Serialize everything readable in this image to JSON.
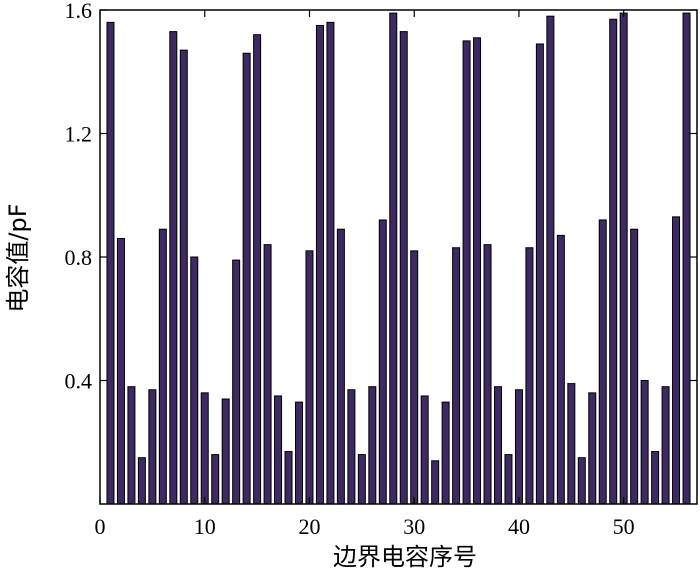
{
  "chart_data": {
    "type": "bar",
    "title": "",
    "xlabel": "边界电容序号",
    "ylabel": "电容值/pF",
    "xlim": [
      0,
      57
    ],
    "ylim": [
      0,
      1.6
    ],
    "xticks": [
      0,
      10,
      20,
      30,
      40,
      50
    ],
    "yticks": [
      0.4,
      0.8,
      1.2,
      1.6
    ],
    "xtick_labels": [
      "0",
      "10",
      "20",
      "30",
      "40",
      "50"
    ],
    "ytick_labels": [
      "0.4",
      "0.8",
      "1.2",
      "1.6"
    ],
    "grid": false,
    "legend": "none",
    "bar_color": "#3d2a63",
    "x": [
      1,
      2,
      3,
      4,
      5,
      6,
      7,
      8,
      9,
      10,
      11,
      12,
      13,
      14,
      15,
      16,
      17,
      18,
      19,
      20,
      21,
      22,
      23,
      24,
      25,
      26,
      27,
      28,
      29,
      30,
      31,
      32,
      33,
      34,
      35,
      36,
      37,
      38,
      39,
      40,
      41,
      42,
      43,
      44,
      45,
      46,
      47,
      48,
      49,
      50,
      51,
      52,
      53,
      54,
      55,
      56
    ],
    "values": [
      1.56,
      0.86,
      0.38,
      0.15,
      0.37,
      0.89,
      1.53,
      1.47,
      0.8,
      0.36,
      0.16,
      0.34,
      0.79,
      1.46,
      1.52,
      0.84,
      0.35,
      0.17,
      0.33,
      0.82,
      1.55,
      1.56,
      0.89,
      0.37,
      0.16,
      0.38,
      0.92,
      1.59,
      1.53,
      0.82,
      0.35,
      0.14,
      0.33,
      0.83,
      1.5,
      1.51,
      0.84,
      0.38,
      0.16,
      0.37,
      0.83,
      1.49,
      1.58,
      0.87,
      0.39,
      0.15,
      0.36,
      0.92,
      1.57,
      1.59,
      0.89,
      0.4,
      0.17,
      0.38,
      0.93,
      1.59
    ]
  }
}
